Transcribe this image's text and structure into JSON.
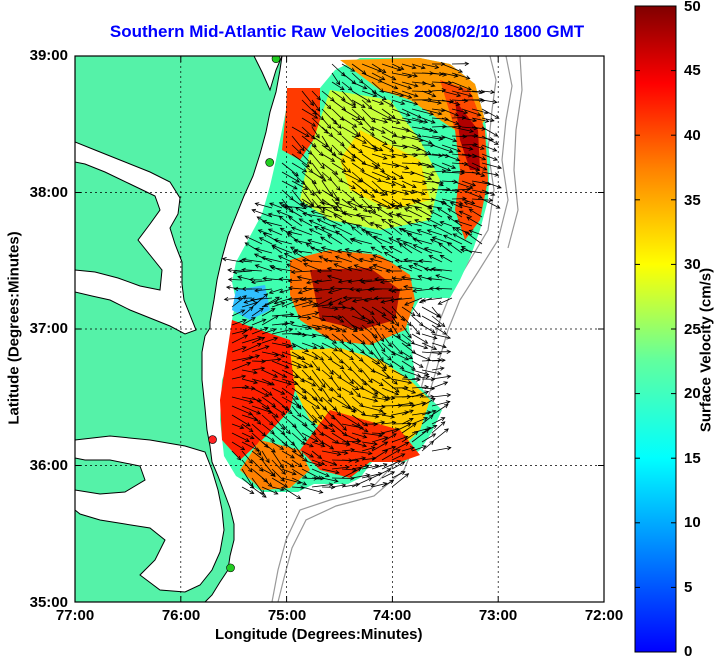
{
  "title": "Southern Mid-Atlantic Raw Velocities 2008/02/10 1800 GMT",
  "map": {
    "xlabel": "Longitude (Degrees:Minutes)",
    "ylabel": "Latitude (Degrees:Minutes)",
    "lon_ticks": [
      "77:00",
      "76:00",
      "75:00",
      "74:00",
      "73:00",
      "72:00"
    ],
    "lat_ticks": [
      "39:00",
      "38:00",
      "37:00",
      "36:00",
      "35:00"
    ],
    "lon_range": [
      -77,
      -72
    ],
    "lat_range": [
      35,
      39
    ],
    "grid": true,
    "land_color": "#55f2a8",
    "coast_color": "#000000",
    "bathymetry_color": "#999999",
    "station_markers": [
      {
        "lon": -75.1,
        "lat": 38.98,
        "color": "#22cc22"
      },
      {
        "lon": -75.16,
        "lat": 38.22,
        "color": "#22cc22"
      },
      {
        "lon": -75.7,
        "lat": 36.19,
        "color": "#ff2222"
      },
      {
        "lon": -75.53,
        "lat": 35.25,
        "color": "#22cc22"
      }
    ],
    "velocity_field_description_colors": [
      "#ff0000",
      "#ffff00",
      "#40ffaa",
      "#00ffff"
    ]
  },
  "colorbar": {
    "label": "Surface Velocity (cm/s)",
    "ticks": [
      "50",
      "45",
      "40",
      "35",
      "30",
      "25",
      "20",
      "15",
      "10",
      "5",
      "0"
    ],
    "range": [
      0,
      50
    ],
    "colormap": "jet"
  }
}
